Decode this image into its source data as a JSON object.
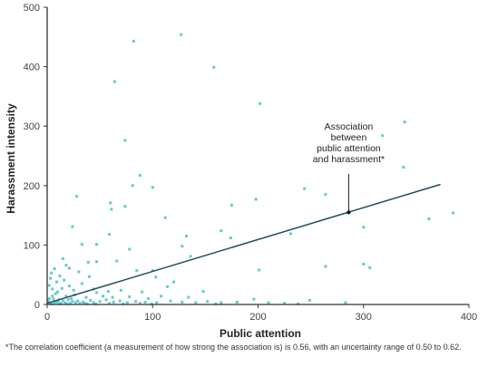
{
  "chart_data": {
    "type": "scatter",
    "xlabel": "Public attention",
    "ylabel": "Harassment intensity",
    "xlim": [
      0,
      400
    ],
    "ylim": [
      0,
      500
    ],
    "xticks": [
      0,
      100,
      200,
      300,
      400
    ],
    "yticks": [
      0,
      100,
      200,
      300,
      400,
      500
    ],
    "grid": false,
    "colors": {
      "points": "#4dbfc6",
      "trendline": "#1f4e5f",
      "axis": "#333333"
    },
    "trendline": {
      "x": [
        0,
        373
      ],
      "y": [
        2,
        202
      ]
    },
    "annotation": {
      "lines": [
        "Association",
        "between",
        "public attention",
        "and harassment*"
      ],
      "point": {
        "x": 286,
        "y": 155
      }
    },
    "points": [
      {
        "x": 127,
        "y": 454
      },
      {
        "x": 82,
        "y": 443
      },
      {
        "x": 158,
        "y": 399
      },
      {
        "x": 64,
        "y": 375
      },
      {
        "x": 202,
        "y": 338
      },
      {
        "x": 339,
        "y": 307
      },
      {
        "x": 74,
        "y": 276
      },
      {
        "x": 318,
        "y": 284
      },
      {
        "x": 338,
        "y": 231
      },
      {
        "x": 88,
        "y": 217
      },
      {
        "x": 81,
        "y": 200
      },
      {
        "x": 100,
        "y": 197
      },
      {
        "x": 244,
        "y": 195
      },
      {
        "x": 28,
        "y": 182
      },
      {
        "x": 264,
        "y": 185
      },
      {
        "x": 198,
        "y": 177
      },
      {
        "x": 60,
        "y": 171
      },
      {
        "x": 175,
        "y": 167
      },
      {
        "x": 61,
        "y": 160
      },
      {
        "x": 74,
        "y": 165
      },
      {
        "x": 112,
        "y": 146
      },
      {
        "x": 362,
        "y": 144
      },
      {
        "x": 385,
        "y": 154
      },
      {
        "x": 24,
        "y": 131
      },
      {
        "x": 165,
        "y": 124
      },
      {
        "x": 59,
        "y": 118
      },
      {
        "x": 300,
        "y": 130
      },
      {
        "x": 231,
        "y": 119
      },
      {
        "x": 174,
        "y": 112
      },
      {
        "x": 132,
        "y": 115
      },
      {
        "x": 33,
        "y": 101
      },
      {
        "x": 47,
        "y": 101
      },
      {
        "x": 128,
        "y": 98
      },
      {
        "x": 78,
        "y": 93
      },
      {
        "x": 47,
        "y": 72
      },
      {
        "x": 66,
        "y": 73
      },
      {
        "x": 136,
        "y": 81
      },
      {
        "x": 15,
        "y": 77
      },
      {
        "x": 39,
        "y": 71
      },
      {
        "x": 201,
        "y": 58
      },
      {
        "x": 300,
        "y": 68
      },
      {
        "x": 306,
        "y": 62
      },
      {
        "x": 264,
        "y": 64
      },
      {
        "x": 100,
        "y": 57
      },
      {
        "x": 85,
        "y": 57
      },
      {
        "x": 12,
        "y": 48
      },
      {
        "x": 4,
        "y": 53
      },
      {
        "x": 21,
        "y": 61
      },
      {
        "x": 30,
        "y": 55
      },
      {
        "x": 40,
        "y": 47
      },
      {
        "x": 103,
        "y": 46
      },
      {
        "x": 120,
        "y": 38
      },
      {
        "x": 114,
        "y": 30
      },
      {
        "x": 9,
        "y": 38
      },
      {
        "x": 21,
        "y": 31
      },
      {
        "x": 5,
        "y": 26
      },
      {
        "x": 14,
        "y": 27
      },
      {
        "x": 33,
        "y": 35
      },
      {
        "x": 58,
        "y": 22
      },
      {
        "x": 70,
        "y": 24
      },
      {
        "x": 47,
        "y": 20
      },
      {
        "x": 90,
        "y": 21
      },
      {
        "x": 148,
        "y": 22
      },
      {
        "x": 8,
        "y": 18
      },
      {
        "x": 18,
        "y": 14
      },
      {
        "x": 26,
        "y": 16
      },
      {
        "x": 37,
        "y": 12
      },
      {
        "x": 2,
        "y": 10
      },
      {
        "x": 6,
        "y": 9
      },
      {
        "x": 11,
        "y": 8
      },
      {
        "x": 15,
        "y": 6
      },
      {
        "x": 20,
        "y": 8
      },
      {
        "x": 24,
        "y": 5
      },
      {
        "x": 29,
        "y": 6
      },
      {
        "x": 34,
        "y": 4
      },
      {
        "x": 41,
        "y": 7
      },
      {
        "x": 50,
        "y": 5
      },
      {
        "x": 56,
        "y": 8
      },
      {
        "x": 63,
        "y": 4
      },
      {
        "x": 69,
        "y": 6
      },
      {
        "x": 76,
        "y": 3
      },
      {
        "x": 84,
        "y": 5
      },
      {
        "x": 93,
        "y": 4
      },
      {
        "x": 104,
        "y": 3
      },
      {
        "x": 117,
        "y": 6
      },
      {
        "x": 128,
        "y": 4
      },
      {
        "x": 141,
        "y": 3
      },
      {
        "x": 152,
        "y": 5
      },
      {
        "x": 165,
        "y": 3
      },
      {
        "x": 180,
        "y": 4
      },
      {
        "x": 196,
        "y": 9
      },
      {
        "x": 210,
        "y": 3
      },
      {
        "x": 249,
        "y": 7
      },
      {
        "x": 283,
        "y": 3
      },
      {
        "x": 3,
        "y": 3
      },
      {
        "x": 7,
        "y": 2
      },
      {
        "x": 10,
        "y": 4
      },
      {
        "x": 13,
        "y": 2
      },
      {
        "x": 17,
        "y": 3
      },
      {
        "x": 22,
        "y": 2
      },
      {
        "x": 27,
        "y": 3
      },
      {
        "x": 31,
        "y": 2
      },
      {
        "x": 36,
        "y": 2
      },
      {
        "x": 44,
        "y": 3
      },
      {
        "x": 5,
        "y": 14
      },
      {
        "x": 10,
        "y": 21
      },
      {
        "x": 2,
        "y": 32
      },
      {
        "x": 16,
        "y": 41
      },
      {
        "x": 25,
        "y": 24
      },
      {
        "x": 44,
        "y": 26
      },
      {
        "x": 53,
        "y": 14
      },
      {
        "x": 62,
        "y": 12
      },
      {
        "x": 78,
        "y": 13
      },
      {
        "x": 96,
        "y": 10
      },
      {
        "x": 108,
        "y": 14
      },
      {
        "x": 134,
        "y": 12
      },
      {
        "x": 1,
        "y": 6
      },
      {
        "x": 4,
        "y": 1
      },
      {
        "x": 8,
        "y": 5
      },
      {
        "x": 12,
        "y": 1
      },
      {
        "x": 19,
        "y": 1
      },
      {
        "x": 23,
        "y": 10
      },
      {
        "x": 38,
        "y": 1
      },
      {
        "x": 46,
        "y": 1
      },
      {
        "x": 59,
        "y": 2
      },
      {
        "x": 72,
        "y": 1
      },
      {
        "x": 88,
        "y": 2
      },
      {
        "x": 99,
        "y": 1
      },
      {
        "x": 160,
        "y": 1
      },
      {
        "x": 225,
        "y": 2
      },
      {
        "x": 238,
        "y": 1
      },
      {
        "x": 3,
        "y": 44
      },
      {
        "x": 7,
        "y": 60
      },
      {
        "x": 18,
        "y": 66
      }
    ]
  },
  "footnote": "*The correlation coefficient (a measurement of how strong the association is) is 0.56, with an uncertainty range of 0.50 to 0.62."
}
